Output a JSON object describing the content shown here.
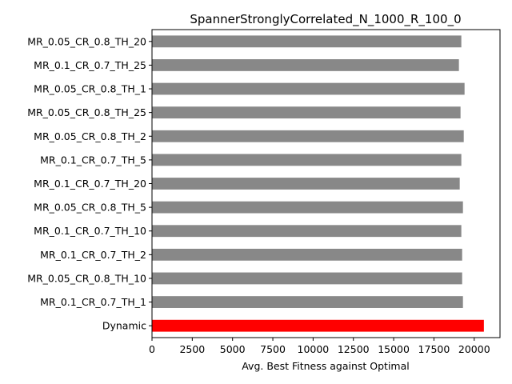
{
  "chart_data": {
    "type": "bar",
    "orientation": "horizontal",
    "title": "SpannerStronglyCorrelated_N_1000_R_100_0",
    "xlabel": "Avg. Best Fitness against Optimal",
    "ylabel": "",
    "xlim": [
      0,
      21600
    ],
    "xticks": [
      0,
      2500,
      5000,
      7500,
      10000,
      12500,
      15000,
      17500,
      20000
    ],
    "categories": [
      "MR_0.05_CR_0.8_TH_20",
      "MR_0.1_CR_0.7_TH_25",
      "MR_0.05_CR_0.8_TH_1",
      "MR_0.05_CR_0.8_TH_25",
      "MR_0.05_CR_0.8_TH_2",
      "MR_0.1_CR_0.7_TH_5",
      "MR_0.1_CR_0.7_TH_20",
      "MR_0.05_CR_0.8_TH_5",
      "MR_0.1_CR_0.7_TH_10",
      "MR_0.1_CR_0.7_TH_2",
      "MR_0.05_CR_0.8_TH_10",
      "MR_0.1_CR_0.7_TH_1",
      "Dynamic"
    ],
    "values": [
      19200,
      19050,
      19400,
      19150,
      19350,
      19200,
      19100,
      19300,
      19200,
      19250,
      19250,
      19300,
      20600
    ],
    "colors": [
      "#888888",
      "#888888",
      "#888888",
      "#888888",
      "#888888",
      "#888888",
      "#888888",
      "#888888",
      "#888888",
      "#888888",
      "#888888",
      "#888888",
      "#ff0000"
    ],
    "grid": false,
    "legend": "none"
  }
}
